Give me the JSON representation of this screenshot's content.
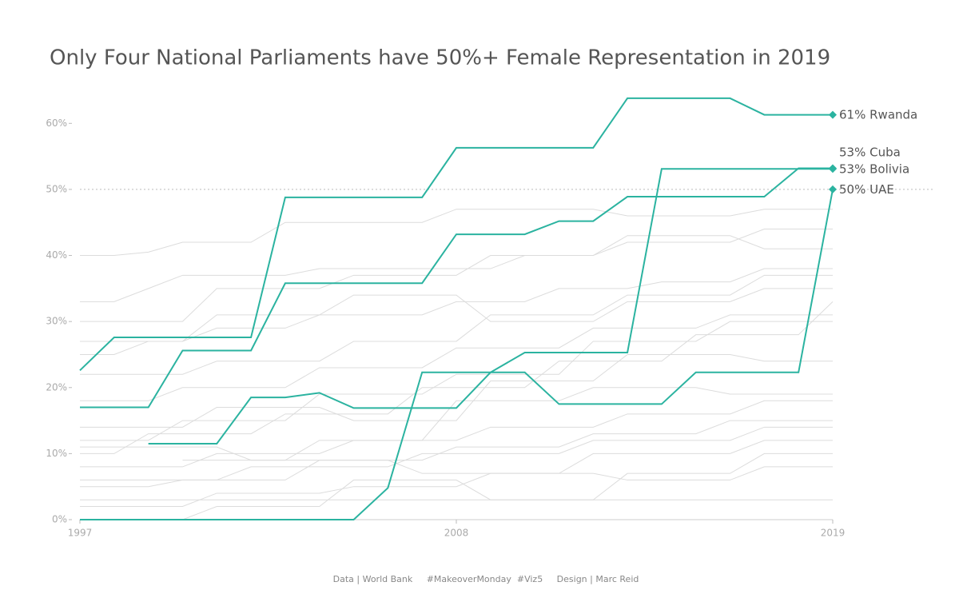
{
  "chart_data": {
    "type": "line",
    "title": "Only Four National Parliaments have 50%+ Female Representation in 2019",
    "footer": "Data | World Bank     #MakeoverMonday  #Viz5     Design | Marc Reid",
    "x": [
      1997,
      1998,
      1999,
      2000,
      2001,
      2002,
      2003,
      2004,
      2005,
      2006,
      2007,
      2008,
      2009,
      2010,
      2011,
      2012,
      2013,
      2014,
      2015,
      2016,
      2017,
      2018,
      2019
    ],
    "xlim": [
      1997,
      2019
    ],
    "xticks": [
      1997,
      2008,
      2019
    ],
    "ylim": [
      0,
      65
    ],
    "yticks": [
      {
        "value": 0,
        "label": "0%"
      },
      {
        "value": 10,
        "label": "10%"
      },
      {
        "value": 20,
        "label": "20%"
      },
      {
        "value": 30,
        "label": "30%"
      },
      {
        "value": 40,
        "label": "40%"
      },
      {
        "value": 50,
        "label": "50%"
      },
      {
        "value": 60,
        "label": "60%"
      }
    ],
    "reference_line": 50,
    "series": [
      {
        "color": "#dcdcdc",
        "values": [
          40,
          40,
          40.5,
          42,
          42,
          42,
          45,
          45,
          45,
          45,
          45,
          47,
          47,
          47,
          47,
          47,
          46,
          46,
          46,
          46,
          47,
          47,
          47
        ]
      },
      {
        "color": "#dcdcdc",
        "values": [
          33,
          33,
          35,
          37,
          37,
          37,
          37,
          38,
          38,
          38,
          38,
          38,
          38,
          40,
          40,
          40,
          42,
          42,
          42,
          42,
          44,
          44,
          44
        ]
      },
      {
        "color": "#dcdcdc",
        "values": [
          25,
          25,
          27,
          27,
          29,
          29,
          29,
          31,
          31,
          31,
          31,
          33,
          33,
          33,
          35,
          35,
          35,
          36,
          36,
          36,
          38,
          38,
          38
        ]
      },
      {
        "color": "#dcdcdc",
        "values": [
          12,
          12,
          12,
          15,
          15,
          15,
          15,
          19,
          19,
          19,
          19,
          22,
          22,
          22,
          22,
          27,
          27,
          27,
          27,
          30,
          30,
          30,
          30
        ]
      },
      {
        "color": "#dcdcdc",
        "values": [
          8,
          8,
          8,
          8,
          10,
          10,
          10,
          10,
          12,
          12,
          12,
          12,
          14,
          14,
          14,
          14,
          16,
          16,
          16,
          16,
          18,
          18,
          18
        ]
      },
      {
        "color": "#dcdcdc",
        "values": [
          5,
          5,
          5,
          6,
          6,
          6,
          6,
          9,
          9,
          9,
          9,
          11,
          11,
          11,
          11,
          13,
          13,
          13,
          13,
          15,
          15,
          15,
          15
        ]
      },
      {
        "color": "#dcdcdc",
        "values": [
          2,
          2,
          2,
          2,
          4,
          4,
          4,
          4,
          5,
          5,
          5,
          5,
          7,
          7,
          7,
          7,
          6,
          6,
          6,
          6,
          8,
          8,
          8
        ]
      },
      {
        "color": "#dcdcdc",
        "values": [
          18,
          18,
          18,
          20,
          20,
          20,
          20,
          23,
          23,
          23,
          23,
          26,
          26,
          26,
          26,
          29,
          29,
          29,
          29,
          31,
          31,
          31,
          31
        ]
      },
      {
        "color": "#dcdcdc",
        "values": [
          10,
          10,
          13,
          13,
          13,
          13,
          16,
          16,
          16,
          16,
          20,
          20,
          20,
          20,
          24,
          24,
          24,
          24,
          28,
          28,
          28,
          28,
          33
        ]
      },
      {
        "color": "#dcdcdc",
        "values": [
          30,
          30,
          30,
          30,
          35,
          35,
          35,
          35,
          37,
          37,
          37,
          37,
          40,
          40,
          40,
          40,
          43,
          43,
          43,
          43,
          41,
          41,
          41
        ]
      },
      {
        "color": "#dcdcdc",
        "values": [
          6,
          6,
          6,
          6,
          6,
          8,
          8,
          8,
          8,
          8,
          10,
          10,
          10,
          10,
          10,
          12,
          12,
          12,
          12,
          12,
          14,
          14,
          14
        ]
      },
      {
        "color": "#dcdcdc",
        "values": [
          14,
          14,
          14,
          14,
          17,
          17,
          17,
          17,
          15,
          15,
          15,
          15,
          21,
          21,
          21,
          21,
          25,
          25,
          25,
          25,
          24,
          24,
          24
        ]
      },
      {
        "color": "#dcdcdc",
        "values": [
          3,
          3,
          3,
          3,
          3,
          3,
          3,
          3,
          3,
          3,
          3,
          3,
          3,
          3,
          3,
          3,
          3,
          3,
          3,
          3,
          3,
          3,
          3
        ]
      },
      {
        "color": "#dcdcdc",
        "values": [
          22,
          22,
          22,
          22,
          24,
          24,
          24,
          24,
          27,
          27,
          27,
          27,
          31,
          31,
          31,
          31,
          34,
          34,
          34,
          34,
          37,
          37,
          37
        ]
      },
      {
        "color": "#dcdcdc",
        "values": [
          null,
          null,
          null,
          9,
          9,
          9,
          9,
          12,
          12,
          12,
          12,
          18,
          18,
          18,
          18,
          20,
          20,
          20,
          20,
          19,
          19,
          19,
          19
        ]
      },
      {
        "color": "#dcdcdc",
        "values": [
          11,
          11,
          11,
          11,
          11,
          9,
          9,
          9,
          9,
          9,
          7,
          7,
          7,
          7,
          7,
          10,
          10,
          10,
          10,
          10,
          12,
          12,
          12
        ]
      },
      {
        "color": "#dcdcdc",
        "values": [
          27,
          27,
          27,
          27,
          31,
          31,
          31,
          31,
          34,
          34,
          34,
          34,
          30,
          30,
          30,
          30,
          33,
          33,
          33,
          33,
          35,
          35,
          35
        ]
      },
      {
        "color": "#dcdcdc",
        "values": [
          0,
          0,
          0,
          0,
          2,
          2,
          2,
          2,
          6,
          6,
          6,
          6,
          3,
          3,
          3,
          3,
          7,
          7,
          7,
          7,
          10,
          10,
          10
        ]
      },
      {
        "name": "Rwanda",
        "color": "#2bb3a0",
        "values": [
          22.6,
          27.6,
          27.6,
          27.6,
          27.6,
          27.6,
          48.8,
          48.8,
          48.8,
          48.8,
          48.8,
          56.3,
          56.3,
          56.3,
          56.3,
          56.3,
          63.8,
          63.8,
          63.8,
          63.8,
          61.3,
          61.3,
          61.3
        ],
        "value_labels": [
          null,
          null,
          null,
          null,
          null,
          null,
          null,
          null,
          null,
          null,
          null,
          null,
          null,
          null,
          null,
          null,
          null,
          null,
          null,
          null,
          null,
          null,
          "61%"
        ]
      },
      {
        "name": "Cuba",
        "color": "#2bb3a0",
        "values": [
          17,
          17,
          17,
          25.6,
          25.6,
          25.6,
          35.8,
          35.8,
          35.8,
          35.8,
          35.8,
          43.2,
          43.2,
          43.2,
          45.2,
          45.2,
          48.9,
          48.9,
          48.9,
          48.9,
          48.9,
          53.2,
          53.2
        ],
        "value_labels": [
          null,
          null,
          null,
          null,
          null,
          null,
          null,
          null,
          null,
          null,
          null,
          null,
          null,
          null,
          null,
          null,
          null,
          null,
          null,
          null,
          null,
          null,
          "53%"
        ]
      },
      {
        "name": "Bolivia",
        "color": "#2bb3a0",
        "values": [
          null,
          null,
          11.5,
          11.5,
          11.5,
          18.5,
          18.5,
          19.2,
          16.9,
          16.9,
          16.9,
          16.9,
          22.3,
          25.3,
          25.3,
          25.3,
          25.3,
          53.1,
          53.1,
          53.1,
          53.1,
          53.1,
          53.1
        ],
        "value_labels": [
          null,
          null,
          null,
          null,
          null,
          null,
          null,
          null,
          null,
          null,
          null,
          null,
          null,
          null,
          null,
          null,
          null,
          null,
          null,
          null,
          null,
          null,
          "53%"
        ]
      },
      {
        "name": "UAE",
        "color": "#2bb3a0",
        "values": [
          0,
          0,
          0,
          0,
          0,
          0,
          0,
          0,
          0,
          4.8,
          22.3,
          22.3,
          22.3,
          22.3,
          17.5,
          17.5,
          17.5,
          17.5,
          22.3,
          22.3,
          22.3,
          22.3,
          50
        ],
        "value_labels": [
          null,
          null,
          null,
          null,
          null,
          null,
          null,
          null,
          null,
          null,
          null,
          null,
          null,
          null,
          null,
          null,
          null,
          null,
          null,
          null,
          null,
          null,
          "50%"
        ]
      }
    ]
  }
}
